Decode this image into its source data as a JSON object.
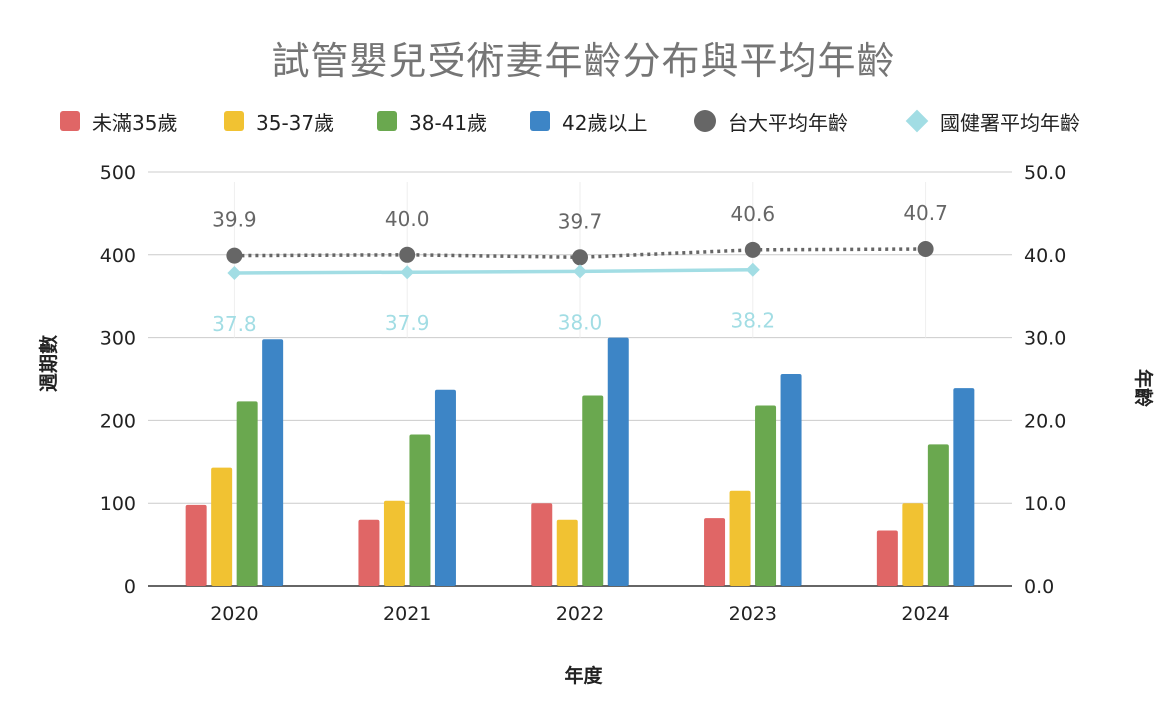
{
  "chart_data": {
    "type": "bar",
    "title": "試管嬰兒受術妻年齡分布與平均年齡",
    "xlabel": "年度",
    "ylabel": "週期數",
    "ylabel_right": "年齡",
    "categories": [
      "2020",
      "2021",
      "2022",
      "2023",
      "2024"
    ],
    "ylim": [
      0,
      500
    ],
    "y_ticks": [
      "0",
      "100",
      "200",
      "300",
      "400",
      "500"
    ],
    "ylim_right": [
      0,
      50
    ],
    "y_ticks_right": [
      "0.0",
      "10.0",
      "20.0",
      "30.0",
      "40.0",
      "50.0"
    ],
    "series": [
      {
        "name": "未滿35歲",
        "color": "#e06666",
        "values": [
          98,
          80,
          100,
          82,
          67
        ]
      },
      {
        "name": "35-37歲",
        "color": "#f1c232",
        "values": [
          143,
          103,
          80,
          115,
          100
        ]
      },
      {
        "name": "38-41歲",
        "color": "#6aa84f",
        "values": [
          223,
          183,
          230,
          218,
          171
        ]
      },
      {
        "name": "42歲以上",
        "color": "#3d85c6",
        "values": [
          298,
          237,
          300,
          256,
          239
        ]
      }
    ],
    "line_series": [
      {
        "name": "台大平均年齡",
        "color": "#666666",
        "marker": "circle",
        "style": "dotted",
        "values": [
          39.9,
          40.0,
          39.7,
          40.6,
          40.7
        ],
        "labels": [
          "39.9",
          "40.0",
          "39.7",
          "40.6",
          "40.7"
        ]
      },
      {
        "name": "國健署平均年齡",
        "color": "#a2dde4",
        "marker": "diamond",
        "style": "solid",
        "values": [
          37.8,
          37.9,
          38.0,
          38.2,
          null
        ],
        "labels": [
          "37.8",
          "37.9",
          "38.0",
          "38.2",
          ""
        ]
      }
    ],
    "legend_position": "top",
    "grid": true
  }
}
